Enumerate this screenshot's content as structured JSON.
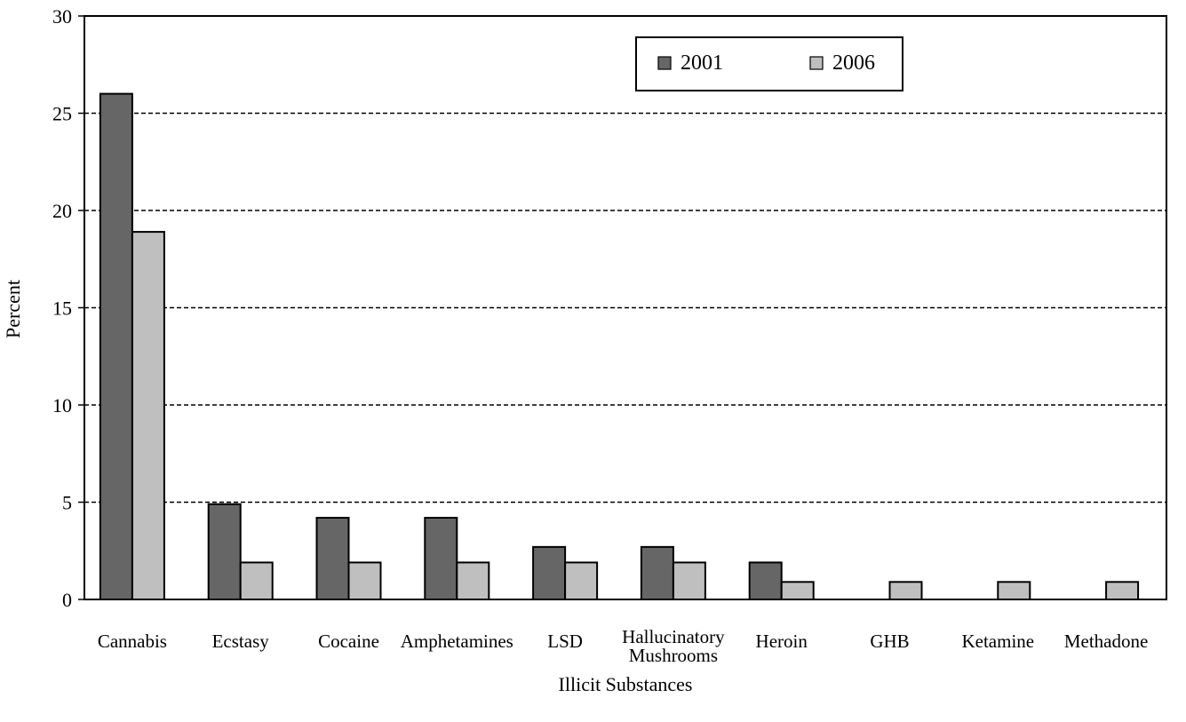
{
  "chart_data": {
    "type": "bar",
    "xlabel": "Illicit Substances",
    "ylabel": "Percent",
    "ylim": [
      0,
      30
    ],
    "yticks": [
      0,
      5,
      10,
      15,
      20,
      25,
      30
    ],
    "grid": "horizontal dashed",
    "legend_position": "top-right",
    "categories": [
      [
        "Cannabis"
      ],
      [
        "Ecstasy"
      ],
      [
        "Cocaine"
      ],
      [
        "Amphetamines"
      ],
      [
        "LSD"
      ],
      [
        "Hallucinatory",
        "Mushrooms"
      ],
      [
        "Heroin"
      ],
      [
        "GHB"
      ],
      [
        "Ketamine"
      ],
      [
        "Methadone"
      ]
    ],
    "series": [
      {
        "name": "2001",
        "color": "#666666",
        "values": [
          26,
          4.9,
          4.2,
          4.2,
          2.7,
          2.7,
          1.9,
          0,
          0,
          0
        ]
      },
      {
        "name": "2006",
        "color": "#bfbfbf",
        "values": [
          18.9,
          1.9,
          1.9,
          1.9,
          1.9,
          1.9,
          0.9,
          0.9,
          0.9,
          0.9
        ]
      }
    ]
  }
}
